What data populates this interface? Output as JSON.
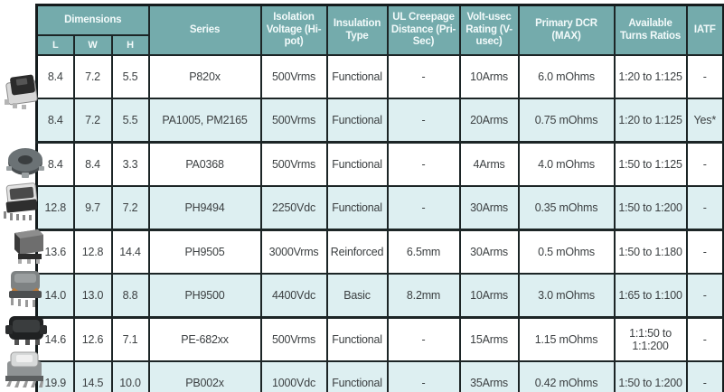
{
  "table": {
    "header": {
      "dimensions": "Dimensions",
      "l": "L",
      "w": "W",
      "h": "H",
      "series": "Series",
      "isolation_voltage": "Isolation Voltage (Hi-pot)",
      "insulation_type": "Insulation Type",
      "ul_creepage": "UL Creepage Distance (Pri-Sec)",
      "volt_usec": "Volt-usec Rating (V-usec)",
      "primary_dcr": "Primary DCR (MAX)",
      "turns_ratios": "Available Turns Ratios",
      "iatf": "IATF"
    },
    "column_keys": [
      "l",
      "w",
      "h",
      "series",
      "isolation_voltage",
      "insulation_type",
      "ul_creepage",
      "volt_usec",
      "primary_dcr",
      "turns_ratios",
      "iatf"
    ],
    "rows": [
      {
        "l": "8.4",
        "w": "7.2",
        "h": "5.5",
        "series": "P820x",
        "isolation_voltage": "500Vrms",
        "insulation_type": "Functional",
        "ul_creepage": "-",
        "volt_usec": "10Arms",
        "primary_dcr": "6.0 mOhms",
        "turns_ratios": "1:20 to 1:125",
        "iatf": "-"
      },
      {
        "l": "8.4",
        "w": "7.2",
        "h": "5.5",
        "series": "PA1005, PM2165",
        "isolation_voltage": "500Vrms",
        "insulation_type": "Functional",
        "ul_creepage": "-",
        "volt_usec": "20Arms",
        "primary_dcr": "0.75 mOhms",
        "turns_ratios": "1:20 to 1:125",
        "iatf": "Yes*"
      },
      {
        "l": "8.4",
        "w": "8.4",
        "h": "3.3",
        "series": "PA0368",
        "isolation_voltage": "500Vrms",
        "insulation_type": "Functional",
        "ul_creepage": "-",
        "volt_usec": "4Arms",
        "primary_dcr": "4.0 mOhms",
        "turns_ratios": "1:50 to 1:125",
        "iatf": "-"
      },
      {
        "l": "12.8",
        "w": "9.7",
        "h": "7.2",
        "series": "PH9494",
        "isolation_voltage": "2250Vdc",
        "insulation_type": "Functional",
        "ul_creepage": "-",
        "volt_usec": "30Arms",
        "primary_dcr": "0.35 mOhms",
        "turns_ratios": "1:50 to 1:200",
        "iatf": "-"
      },
      {
        "l": "13.6",
        "w": "12.8",
        "h": "14.4",
        "series": "PH9505",
        "isolation_voltage": "3000Vrms",
        "insulation_type": "Reinforced",
        "ul_creepage": "6.5mm",
        "volt_usec": "30Arms",
        "primary_dcr": "0.5 mOhms",
        "turns_ratios": "1:50 to 1:180",
        "iatf": "-"
      },
      {
        "l": "14.0",
        "w": "13.0",
        "h": "8.8",
        "series": "PH9500",
        "isolation_voltage": "4400Vdc",
        "insulation_type": "Basic",
        "ul_creepage": "8.2mm",
        "volt_usec": "10Arms",
        "primary_dcr": "3.0 mOhms",
        "turns_ratios": "1:65 to 1:100",
        "iatf": "-"
      },
      {
        "l": "14.6",
        "w": "12.6",
        "h": "7.1",
        "series": "PE-682xx",
        "isolation_voltage": "500Vrms",
        "insulation_type": "Functional",
        "ul_creepage": "-",
        "volt_usec": "15Arms",
        "primary_dcr": "1.15 mOhms",
        "turns_ratios": "1:1:50 to 1:1:200",
        "iatf": "-"
      },
      {
        "l": "19.9",
        "w": "14.5",
        "h": "10.0",
        "series": "PB002x",
        "isolation_voltage": "1000Vdc",
        "insulation_type": "Functional",
        "ul_creepage": "-",
        "volt_usec": "35Arms",
        "primary_dcr": "0.42 mOhms",
        "turns_ratios": "1:50 to 1:200",
        "iatf": "-"
      }
    ]
  },
  "photos": [
    "smd-transformer-photo-p820x",
    "toroid-transformer-photo-pa0368",
    "smd-transformer-photo-ph9494",
    "cube-transformer-photo-ph9505",
    "wound-transformer-photo-ph9500",
    "bobbin-transformer-photo-pe682xx",
    "gullwing-transformer-photo-pb002x"
  ],
  "colors": {
    "header_teal": "#74abac",
    "alt_row_blue": "#ddeff1",
    "border_dark": "#1c2526",
    "text_dark": "#3c4042",
    "header_text": "#f2fafa"
  }
}
